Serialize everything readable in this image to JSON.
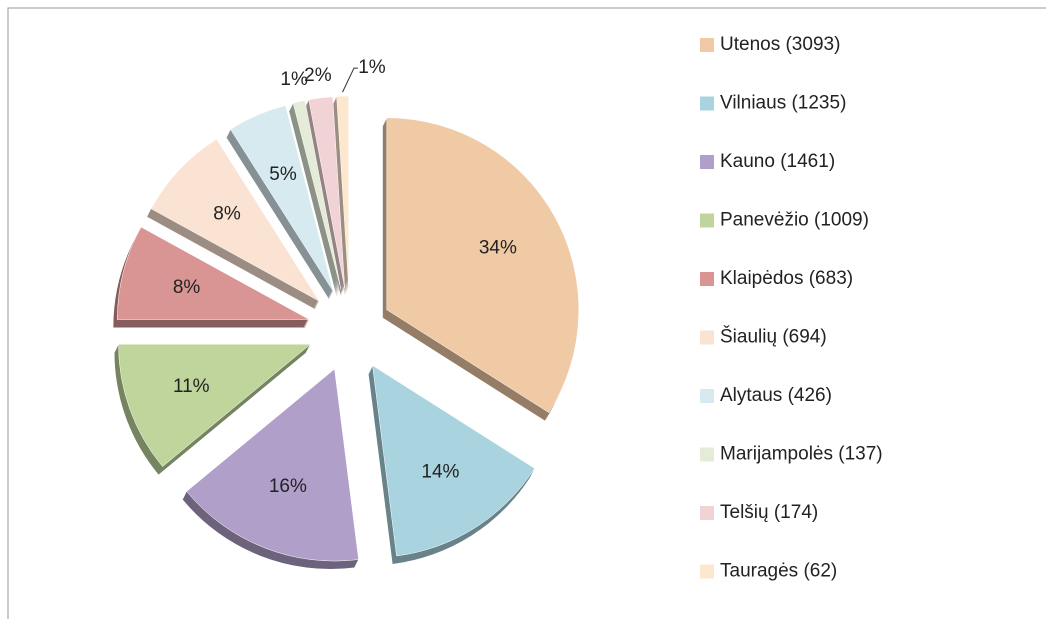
{
  "chart_data": {
    "type": "pie",
    "categories": [
      "Utenos (3093)",
      "Vilniaus (1235)",
      "Kauno (1461)",
      "Panevėžio (1009)",
      "Klaipėdos (683)",
      "Šiaulių (694)",
      "Alytaus (426)",
      "Marijampolės (137)",
      "Telšių (174)",
      "Tauragės (62)"
    ],
    "values": [
      34,
      14,
      16,
      11,
      8,
      8,
      5,
      1,
      2,
      1
    ],
    "value_labels": [
      "34%",
      "14%",
      "16%",
      "11%",
      "8%",
      "8%",
      "5%",
      "1%",
      "2%",
      "1%"
    ],
    "colors": [
      "#f0c9a5",
      "#a9d4df",
      "#b09fc8",
      "#bfd59c",
      "#d99594",
      "#fbe3d3",
      "#d6eaf0",
      "#e4ecd8",
      "#f1d3d6",
      "#fde7cf"
    ],
    "legend": "right"
  }
}
